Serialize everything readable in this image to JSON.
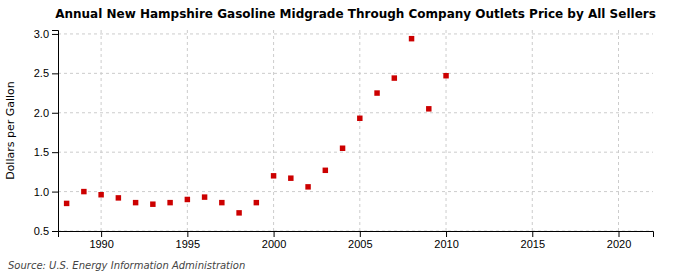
{
  "chart_data": {
    "type": "scatter",
    "title": "Annual New Hampshire Gasoline Midgrade Through Company Outlets Price by All Sellers",
    "ylabel": "Dollars per Gallon",
    "annotation": "Source: U.S. Energy Information Administration",
    "color": "#cc0000",
    "marker": "square",
    "grid": true,
    "xlim": [
      1987.5,
      2022
    ],
    "ylim": [
      0.5,
      3.05
    ],
    "xticks": [
      1990,
      1995,
      2000,
      2005,
      2010,
      2015,
      2020
    ],
    "yticks": [
      0.5,
      {
        "value": 1.0,
        "label": "1.0"
      },
      1.5,
      {
        "value": 2.0,
        "label": "2.0"
      },
      2.5,
      {
        "value": 3.0,
        "label": "3.0"
      }
    ],
    "x": [
      1988,
      1989,
      1990,
      1991,
      1992,
      1993,
      1994,
      1995,
      1996,
      1997,
      1998,
      1999,
      2000,
      2001,
      2002,
      2003,
      2004,
      2005,
      2006,
      2007,
      2008,
      2009,
      2010
    ],
    "values": [
      0.85,
      1.0,
      0.96,
      0.92,
      0.86,
      0.84,
      0.86,
      0.9,
      0.93,
      0.86,
      0.73,
      0.86,
      1.2,
      1.17,
      1.06,
      1.27,
      1.55,
      1.93,
      2.25,
      2.44,
      2.94,
      2.05,
      2.47
    ]
  }
}
